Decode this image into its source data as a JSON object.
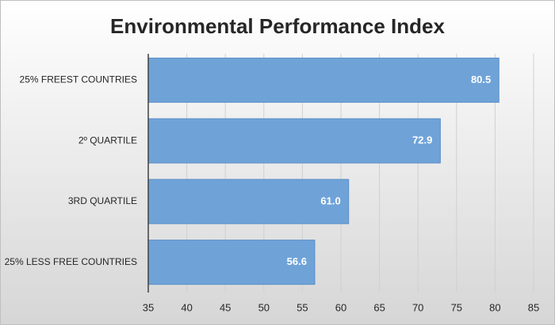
{
  "chart_data": {
    "type": "bar",
    "orientation": "horizontal",
    "title": "Environmental Performance Index",
    "categories": [
      "25% FREEST COUNTRIES",
      "2º QUARTILE",
      "3RD QUARTILE",
      "25% LESS FREE COUNTRIES"
    ],
    "values": [
      80.5,
      72.9,
      61.0,
      56.6
    ],
    "value_labels": [
      "80.5",
      "72.9",
      "61.0",
      "56.6"
    ],
    "color": "#6fa3d8",
    "xlim": [
      35,
      85
    ],
    "xticks": [
      35,
      40,
      45,
      50,
      55,
      60,
      65,
      70,
      75,
      80,
      85
    ],
    "grid": true
  }
}
